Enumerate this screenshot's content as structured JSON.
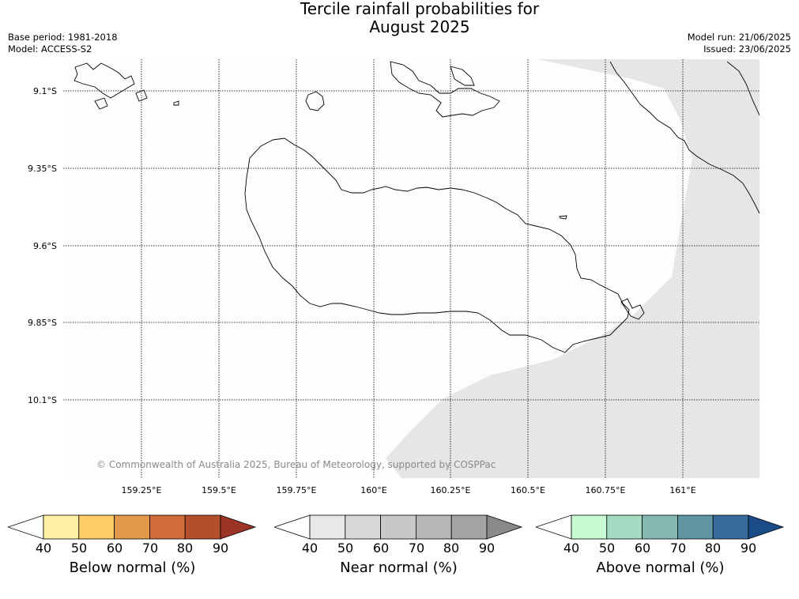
{
  "title_line1": "Tercile rainfall probabilities for",
  "title_line2": "August 2025",
  "meta": {
    "base_period": "Base period: 1981-2018",
    "model": "Model: ACCESS-S2",
    "model_run": "Model run: 21/06/2025",
    "issued": "Issued: 23/06/2025"
  },
  "map": {
    "lat_labels": [
      "9.1°S",
      "9.35°S",
      "9.6°S",
      "9.85°S",
      "10.1°S"
    ],
    "lon_labels": [
      "159.25°E",
      "159.5°E",
      "159.75°E",
      "160°E",
      "160.25°E",
      "160.5°E",
      "160.75°E",
      "161°E"
    ],
    "copyright": "© Commonwealth of Australia 2025, Bureau of Meteorology, supported by COSPPac",
    "shaded_region_color": "#e6e6e6"
  },
  "colorbars": [
    {
      "label": "Below normal (%)",
      "ticks": [
        "40",
        "50",
        "60",
        "70",
        "80",
        "90"
      ],
      "colors": [
        "#ffffff",
        "#fff0a3",
        "#ffcc66",
        "#e39b4b",
        "#d16b38",
        "#b34f2c",
        "#9b3426"
      ]
    },
    {
      "label": "Near normal (%)",
      "ticks": [
        "40",
        "50",
        "60",
        "70",
        "80",
        "90"
      ],
      "colors": [
        "#ffffff",
        "#e8e8e8",
        "#d8d8d8",
        "#c8c8c8",
        "#b6b6b6",
        "#a4a4a4",
        "#8a8a8a"
      ]
    },
    {
      "label": "Above normal (%)",
      "ticks": [
        "40",
        "50",
        "60",
        "70",
        "80",
        "90"
      ],
      "colors": [
        "#ffffff",
        "#c9fbd2",
        "#a4dcc3",
        "#84b8b3",
        "#6096a3",
        "#366b9b",
        "#1b4c87"
      ]
    }
  ]
}
